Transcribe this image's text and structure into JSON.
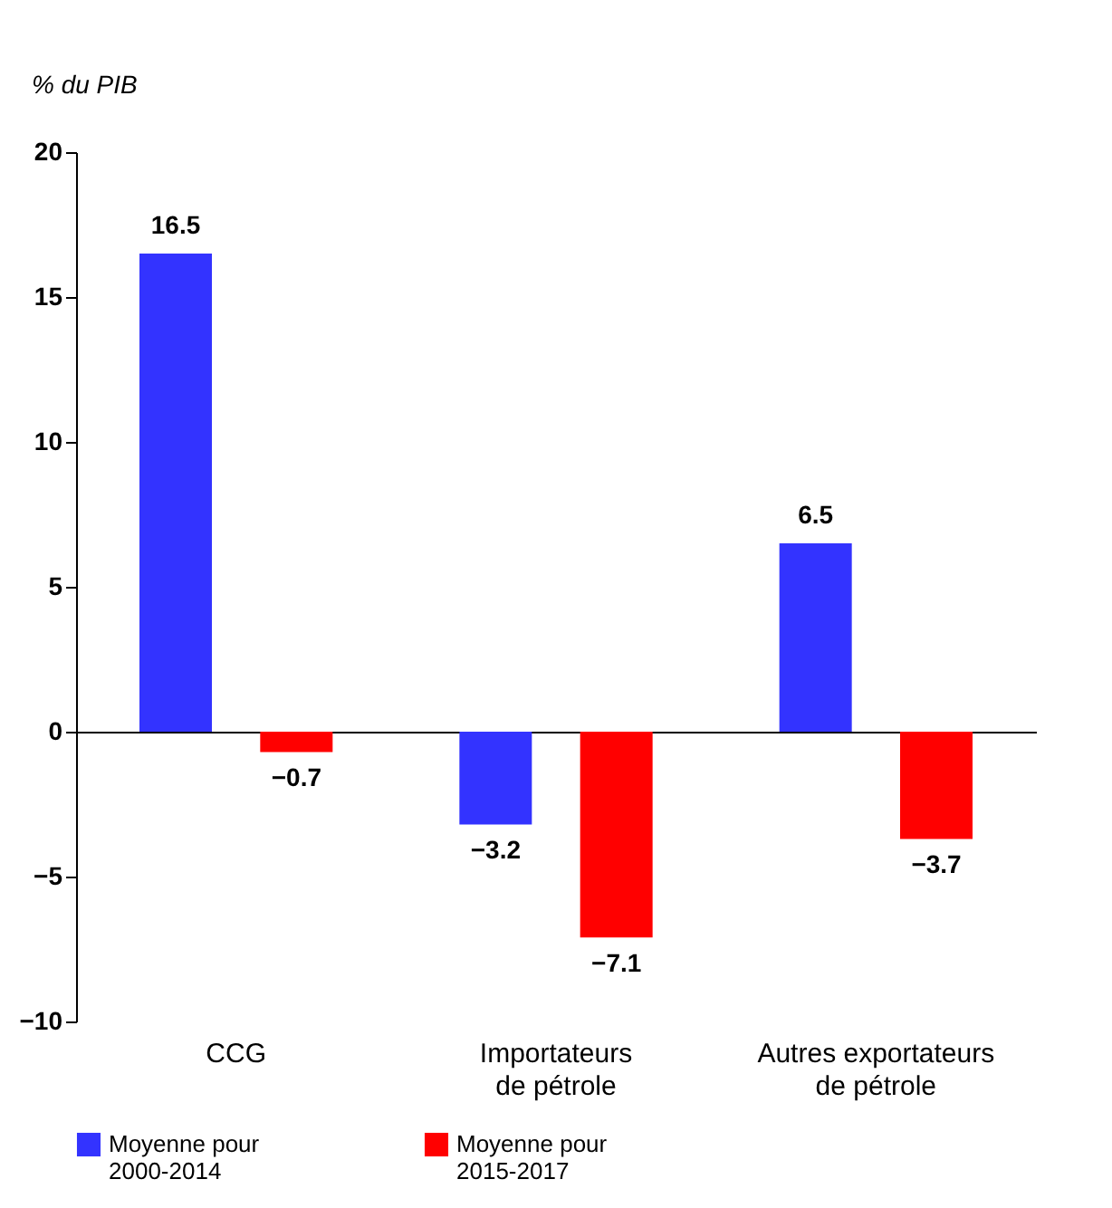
{
  "chart_data": {
    "type": "bar",
    "ylabel": "% du PIB",
    "categories": [
      "CCG",
      "Importateurs de pétrole",
      "Autres exportateurs de pétrole"
    ],
    "series": [
      {
        "name": "Moyenne pour 2000-2014",
        "color": "#3333ff",
        "values": [
          16.5,
          -3.2,
          6.5
        ]
      },
      {
        "name": "Moyenne pour 2015-2017",
        "color": "#ff0000",
        "values": [
          -0.7,
          -7.1,
          -3.7
        ]
      }
    ],
    "ylim": [
      -10,
      20
    ],
    "yticks": [
      -10,
      -5,
      0,
      5,
      10,
      15,
      20
    ],
    "data_labels": true,
    "legend": "bottom"
  }
}
